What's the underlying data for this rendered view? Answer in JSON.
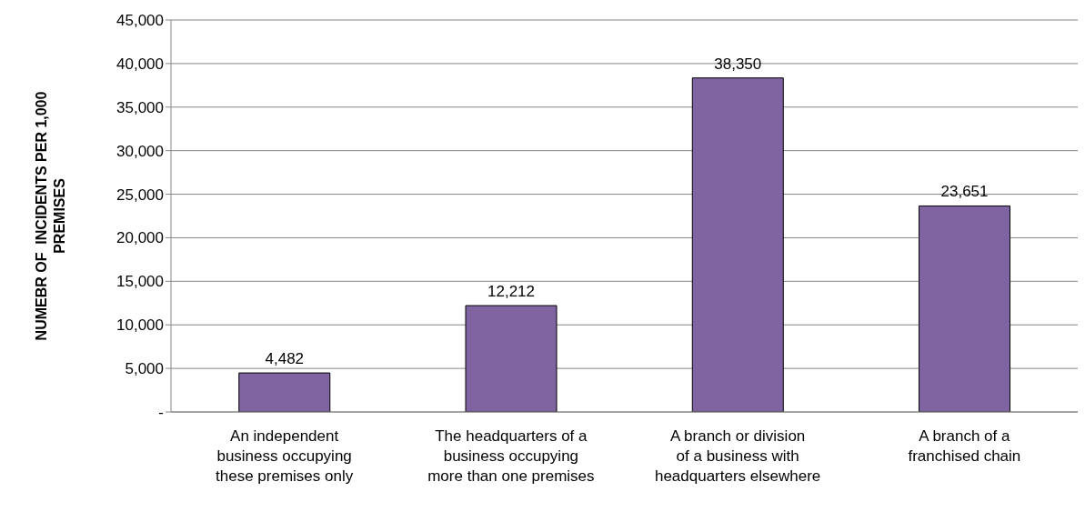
{
  "chart_data": {
    "type": "bar",
    "ylabel": "NUMEBR OF  INCIDENTS PER 1,000 PREMISES",
    "categories": [
      "An independent business occupying these premises only",
      "The headquarters of a business occupying more than one premises",
      "A branch or division of a business with headquarters elsewhere",
      "A branch of a franchised chain"
    ],
    "values": [
      4482,
      12212,
      38350,
      23651
    ],
    "color": "#8064a2",
    "ylim": [
      0,
      45000
    ],
    "yticks": [
      {
        "value": 0,
        "label": "-"
      },
      {
        "value": 5000,
        "label": "5,000"
      },
      {
        "value": 10000,
        "label": "10,000"
      },
      {
        "value": 15000,
        "label": "15,000"
      },
      {
        "value": 20000,
        "label": "20,000"
      },
      {
        "value": 25000,
        "label": "25,000"
      },
      {
        "value": 30000,
        "label": "30,000"
      },
      {
        "value": 35000,
        "label": "35,000"
      },
      {
        "value": 40000,
        "label": "40,000"
      },
      {
        "value": 45000,
        "label": "45,000"
      }
    ],
    "grid": "y",
    "value_labels": [
      "4,482",
      "12,212",
      "38,350",
      "23,651"
    ]
  }
}
